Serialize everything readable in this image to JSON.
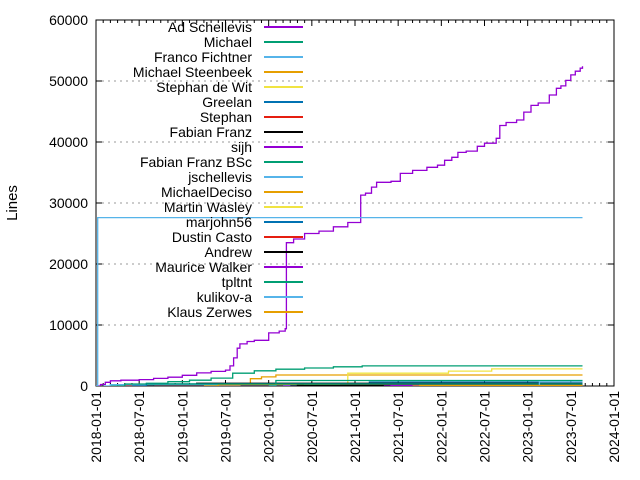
{
  "figure": {
    "kind": "gnuplot-style line chart (lines of code per contributor over time)",
    "background": "#ffffff",
    "border_color": "#000000",
    "grid_color": "#9a9a9a"
  },
  "chart_data": {
    "type": "line",
    "title": "",
    "xlabel": "",
    "ylabel": "Lines",
    "ylim": [
      0,
      60000
    ],
    "xlim": [
      "2018-01-01",
      "2024-01-01"
    ],
    "y_ticks": [
      0,
      10000,
      20000,
      30000,
      40000,
      50000,
      60000
    ],
    "x_tick_labels": [
      "2018-01-01",
      "2018-07-01",
      "2019-01-01",
      "2019-07-01",
      "2020-01-01",
      "2020-07-01",
      "2021-01-01",
      "2021-07-01",
      "2022-01-01",
      "2022-07-01",
      "2023-01-01",
      "2023-07-01",
      "2024-01-01"
    ],
    "x_tick_label_rotation": -90,
    "grid": "horizontal dashed gridlines at 10000..50000",
    "legend_position": "top-left inside plot, single column, right-aligned labels with line swatches",
    "line_style": "steps-post",
    "series": [
      {
        "name": "Ad Schellevis",
        "color": "#9400D3",
        "points": [
          [
            "2018-01-01",
            0
          ],
          [
            "2018-01-20",
            250
          ],
          [
            "2018-02-10",
            600
          ],
          [
            "2018-03-01",
            850
          ],
          [
            "2018-04-15",
            950
          ],
          [
            "2018-07-01",
            1050
          ],
          [
            "2018-09-01",
            1250
          ],
          [
            "2018-11-01",
            1450
          ],
          [
            "2019-01-01",
            1750
          ],
          [
            "2019-03-01",
            2150
          ],
          [
            "2019-05-01",
            2400
          ],
          [
            "2019-07-01",
            2600
          ],
          [
            "2019-07-20",
            3300
          ],
          [
            "2019-08-05",
            4600
          ],
          [
            "2019-08-20",
            6200
          ],
          [
            "2019-09-01",
            6900
          ],
          [
            "2019-10-01",
            7300
          ],
          [
            "2019-11-01",
            7500
          ],
          [
            "2020-01-01",
            8700
          ],
          [
            "2020-02-15",
            9000
          ],
          [
            "2020-03-10",
            9400
          ],
          [
            "2020-03-15",
            23500
          ],
          [
            "2020-04-15",
            24100
          ],
          [
            "2020-06-01",
            25000
          ],
          [
            "2020-08-01",
            25400
          ],
          [
            "2020-10-01",
            26100
          ],
          [
            "2020-12-01",
            26800
          ],
          [
            "2021-01-25",
            31300
          ],
          [
            "2021-02-15",
            31600
          ],
          [
            "2021-03-10",
            32600
          ],
          [
            "2021-04-01",
            33400
          ],
          [
            "2021-06-01",
            33550
          ],
          [
            "2021-07-10",
            34850
          ],
          [
            "2021-09-01",
            35350
          ],
          [
            "2021-11-01",
            35850
          ],
          [
            "2021-12-15",
            36200
          ],
          [
            "2022-01-15",
            37000
          ],
          [
            "2022-02-15",
            37500
          ],
          [
            "2022-03-10",
            38300
          ],
          [
            "2022-04-15",
            38500
          ],
          [
            "2022-06-01",
            39300
          ],
          [
            "2022-07-01",
            39800
          ],
          [
            "2022-08-20",
            40600
          ],
          [
            "2022-09-05",
            42700
          ],
          [
            "2022-10-01",
            43200
          ],
          [
            "2022-11-15",
            43600
          ],
          [
            "2022-12-15",
            44900
          ],
          [
            "2023-01-15",
            46000
          ],
          [
            "2023-02-15",
            46400
          ],
          [
            "2023-04-01",
            47700
          ],
          [
            "2023-05-01",
            48800
          ],
          [
            "2023-05-20",
            49200
          ],
          [
            "2023-06-10",
            50100
          ],
          [
            "2023-07-01",
            51000
          ],
          [
            "2023-07-20",
            51600
          ],
          [
            "2023-08-10",
            52100
          ],
          [
            "2023-08-20",
            52430
          ]
        ]
      },
      {
        "name": "Michael",
        "color": "#009E73",
        "points": [
          [
            "2018-03-01",
            0
          ],
          [
            "2018-05-01",
            200
          ],
          [
            "2018-08-01",
            450
          ],
          [
            "2018-11-01",
            700
          ],
          [
            "2019-02-01",
            950
          ],
          [
            "2019-05-01",
            1300
          ],
          [
            "2019-08-01",
            2100
          ],
          [
            "2019-11-01",
            2500
          ],
          [
            "2020-02-01",
            2750
          ],
          [
            "2020-06-01",
            2950
          ],
          [
            "2020-10-01",
            3150
          ],
          [
            "2021-02-01",
            3300
          ],
          [
            "2023-08-20",
            3300
          ]
        ]
      },
      {
        "name": "Franco Fichtner",
        "color": "#56B4E9",
        "points": [
          [
            "2018-01-01",
            0
          ],
          [
            "2018-01-08",
            27600
          ],
          [
            "2023-08-20",
            27600
          ]
        ]
      },
      {
        "name": "Michael Steenbeek",
        "color": "#E69F00",
        "points": [
          [
            "2019-06-01",
            0
          ],
          [
            "2019-09-01",
            400
          ],
          [
            "2019-10-15",
            1200
          ],
          [
            "2019-12-01",
            1500
          ],
          [
            "2020-02-01",
            1800
          ],
          [
            "2023-08-20",
            1800
          ]
        ]
      },
      {
        "name": "Stephan de Wit",
        "color": "#F0E442",
        "points": [
          [
            "2020-11-15",
            0
          ],
          [
            "2020-12-01",
            2100
          ],
          [
            "2022-02-01",
            2450
          ],
          [
            "2022-08-01",
            2800
          ],
          [
            "2023-08-20",
            2800
          ]
        ]
      },
      {
        "name": "Greelan",
        "color": "#0072B2",
        "points": [
          [
            "2020-06-01",
            0
          ],
          [
            "2020-08-01",
            400
          ],
          [
            "2021-03-01",
            650
          ],
          [
            "2023-08-20",
            650
          ]
        ]
      },
      {
        "name": "Stephan",
        "color": "#E51E10",
        "points": [
          [
            "2018-05-01",
            0
          ],
          [
            "2018-06-01",
            160
          ],
          [
            "2023-08-20",
            160
          ]
        ]
      },
      {
        "name": "Fabian Franz",
        "color": "#000000",
        "points": [
          [
            "2018-08-01",
            0
          ],
          [
            "2018-09-01",
            300
          ],
          [
            "2019-03-01",
            450
          ],
          [
            "2023-08-20",
            450
          ]
        ]
      },
      {
        "name": "sijh",
        "color": "#9400D3",
        "points": [
          [
            "2020-03-01",
            0
          ],
          [
            "2020-04-01",
            150
          ],
          [
            "2023-08-20",
            150
          ]
        ]
      },
      {
        "name": "Fabian Franz BSc",
        "color": "#009E73",
        "points": [
          [
            "2020-01-01",
            0
          ],
          [
            "2020-02-01",
            900
          ],
          [
            "2023-08-20",
            900
          ]
        ]
      },
      {
        "name": "jschellevis",
        "color": "#56B4E9",
        "points": [
          [
            "2018-02-01",
            0
          ],
          [
            "2018-03-01",
            220
          ],
          [
            "2023-08-20",
            220
          ]
        ]
      },
      {
        "name": "MichaelDeciso",
        "color": "#E69F00",
        "points": [
          [
            "2019-04-01",
            0
          ],
          [
            "2019-06-01",
            280
          ],
          [
            "2023-08-20",
            280
          ]
        ]
      },
      {
        "name": "Martin Wasley",
        "color": "#F0E442",
        "points": [
          [
            "2020-05-01",
            0
          ],
          [
            "2020-06-01",
            120
          ],
          [
            "2023-08-20",
            120
          ]
        ]
      },
      {
        "name": "marjohn56",
        "color": "#0072B2",
        "points": [
          [
            "2018-06-01",
            0
          ],
          [
            "2018-08-01",
            350
          ],
          [
            "2023-08-20",
            350
          ]
        ]
      },
      {
        "name": "Dustin Casto",
        "color": "#E51E10",
        "points": [
          [
            "2020-10-01",
            0
          ],
          [
            "2020-11-01",
            120
          ],
          [
            "2023-08-20",
            120
          ]
        ]
      },
      {
        "name": "Andrew",
        "color": "#000000",
        "points": [
          [
            "2020-04-01",
            0
          ],
          [
            "2020-05-01",
            100
          ],
          [
            "2023-08-20",
            100
          ]
        ]
      },
      {
        "name": "Maurice Walker",
        "color": "#9400D3",
        "points": [
          [
            "2021-05-01",
            0
          ],
          [
            "2021-06-01",
            80
          ],
          [
            "2023-08-20",
            80
          ]
        ]
      },
      {
        "name": "tpltnt",
        "color": "#009E73",
        "points": [
          [
            "2018-04-01",
            0
          ],
          [
            "2018-05-01",
            330
          ],
          [
            "2023-08-20",
            330
          ]
        ]
      },
      {
        "name": "kulikov-a",
        "color": "#56B4E9",
        "points": [
          [
            "2023-02-01",
            0
          ],
          [
            "2023-02-20",
            650
          ],
          [
            "2023-08-20",
            650
          ]
        ]
      },
      {
        "name": "Klaus Zerwes",
        "color": "#E69F00",
        "points": [
          [
            "2021-09-01",
            0
          ],
          [
            "2021-10-01",
            90
          ],
          [
            "2023-08-20",
            90
          ]
        ]
      }
    ]
  }
}
